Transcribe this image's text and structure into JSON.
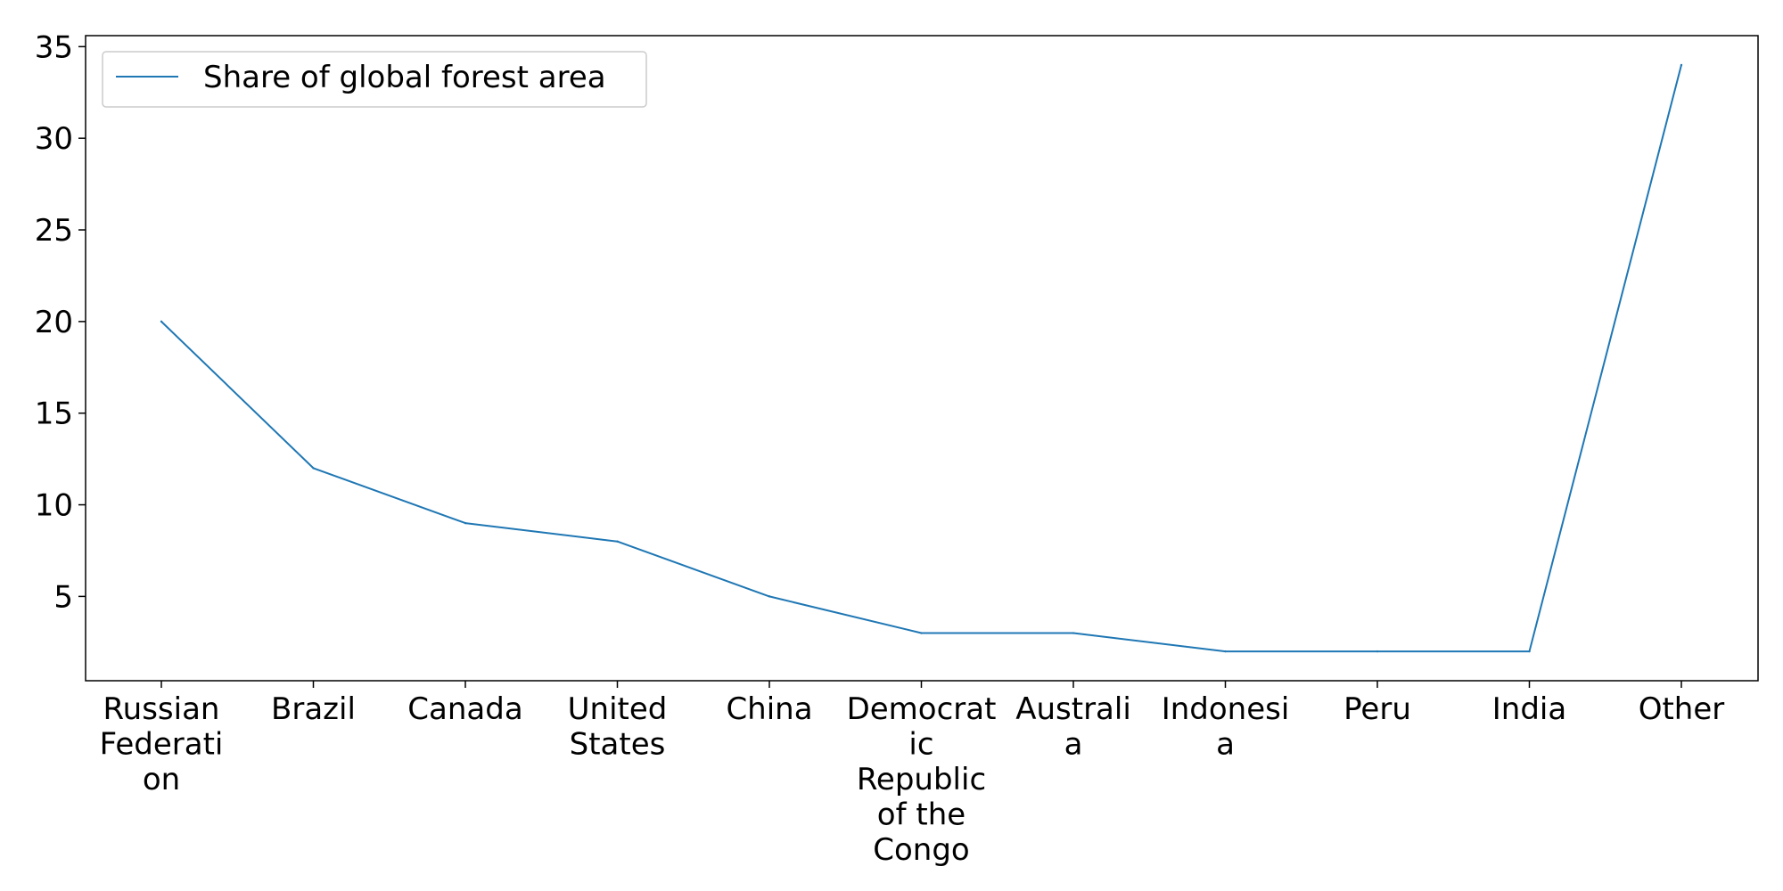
{
  "chart_data": {
    "type": "line",
    "title": "",
    "xlabel": "",
    "ylabel": "",
    "categories": [
      "Russian Federation",
      "Brazil",
      "Canada",
      "United States",
      "China",
      "Democratic Republic of the Congo",
      "Australia",
      "Indonesia",
      "Peru",
      "India",
      "Other"
    ],
    "category_label_lines": [
      [
        "Russian",
        "Federati",
        "on"
      ],
      [
        "Brazil"
      ],
      [
        "Canada"
      ],
      [
        "United",
        "States"
      ],
      [
        "China"
      ],
      [
        "Democrat",
        "ic",
        "Republic",
        "of the",
        "Congo"
      ],
      [
        "Australi",
        "a"
      ],
      [
        "Indonesi",
        "a"
      ],
      [
        "Peru"
      ],
      [
        "India"
      ],
      [
        "Other"
      ]
    ],
    "series": [
      {
        "name": "Share of global forest area",
        "values": [
          20,
          12,
          9,
          8,
          5,
          3,
          3,
          2,
          2,
          2,
          34
        ],
        "color": "#1f77b4"
      }
    ],
    "yticks": [
      5,
      10,
      15,
      20,
      25,
      30,
      35
    ],
    "ylim": [
      0.4,
      35.6
    ],
    "grid": false,
    "legend_position": "upper-left"
  }
}
